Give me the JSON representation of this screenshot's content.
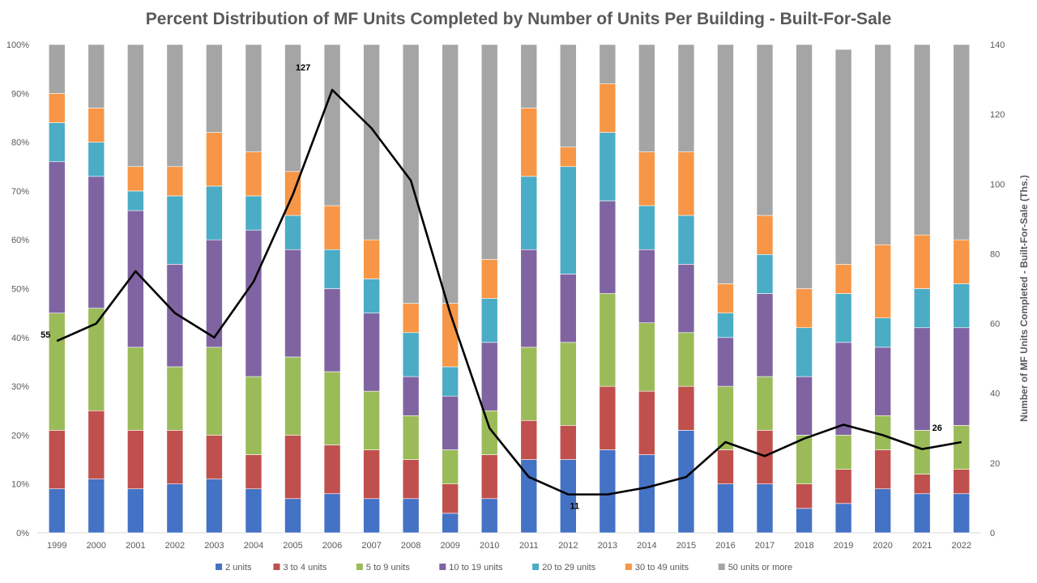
{
  "chart_data": {
    "type": "bar",
    "subtype": "stacked-percent-with-line",
    "title": "Percent Distribution of MF Units Completed by Number of Units Per Building - Built-For-Sale",
    "categories": [
      "1999",
      "2000",
      "2001",
      "2002",
      "2003",
      "2004",
      "2005",
      "2006",
      "2007",
      "2008",
      "2009",
      "2010",
      "2011",
      "2012",
      "2013",
      "2014",
      "2015",
      "2016",
      "2017",
      "2018",
      "2019",
      "2020",
      "2021",
      "2022"
    ],
    "y_left": {
      "ticks": [
        "0%",
        "10%",
        "20%",
        "30%",
        "40%",
        "50%",
        "60%",
        "70%",
        "80%",
        "90%",
        "100%"
      ],
      "ylim": [
        0,
        100
      ]
    },
    "y_right": {
      "label": "Number of MF Units Completed - Built-For-Sale (Ths.)",
      "ticks": [
        "0",
        "20",
        "40",
        "60",
        "80",
        "100",
        "120",
        "140"
      ],
      "ylim": [
        0,
        140
      ]
    },
    "series": [
      {
        "name": "2 units",
        "color": "#4472C4",
        "values": [
          9,
          11,
          9,
          10,
          11,
          9,
          7,
          8,
          7,
          7,
          4,
          7,
          15,
          15,
          17,
          16,
          21,
          10,
          10,
          5,
          6,
          9,
          8,
          8
        ]
      },
      {
        "name": "3 to 4 units",
        "color": "#C0504D",
        "values": [
          12,
          14,
          12,
          11,
          9,
          7,
          13,
          10,
          10,
          8,
          6,
          9,
          8,
          7,
          13,
          13,
          9,
          7,
          11,
          5,
          7,
          8,
          4,
          5
        ]
      },
      {
        "name": "5 to 9 units",
        "color": "#9BBB59",
        "values": [
          24,
          21,
          17,
          13,
          18,
          16,
          16,
          15,
          12,
          9,
          7,
          9,
          15,
          17,
          19,
          14,
          11,
          13,
          11,
          10,
          7,
          7,
          9,
          9
        ]
      },
      {
        "name": "10 to 19 units",
        "color": "#8064A2",
        "values": [
          31,
          27,
          28,
          21,
          22,
          30,
          22,
          17,
          16,
          8,
          11,
          14,
          20,
          14,
          19,
          15,
          14,
          10,
          17,
          12,
          19,
          14,
          21,
          20
        ]
      },
      {
        "name": "20 to 29 units",
        "color": "#4BACC6",
        "values": [
          8,
          7,
          4,
          14,
          11,
          7,
          7,
          8,
          7,
          9,
          6,
          9,
          15,
          22,
          14,
          9,
          10,
          5,
          8,
          10,
          10,
          6,
          8,
          9
        ]
      },
      {
        "name": "30 to 49 units",
        "color": "#F79646",
        "values": [
          6,
          7,
          5,
          6,
          11,
          9,
          9,
          9,
          8,
          6,
          13,
          8,
          14,
          4,
          10,
          11,
          13,
          6,
          8,
          8,
          6,
          15,
          11,
          9
        ]
      },
      {
        "name": "50 units or more",
        "color": "#A5A5A5",
        "values": [
          10,
          13,
          25,
          25,
          18,
          22,
          26,
          33,
          40,
          53,
          53,
          44,
          13,
          21,
          8,
          22,
          22,
          49,
          35,
          50,
          44,
          41,
          39,
          40
        ]
      }
    ],
    "line": {
      "name": "Number of MF Units Completed - Built-For-Sale (Ths.)",
      "color": "#000000",
      "axis": "right",
      "values": [
        55,
        60,
        75,
        63,
        56,
        72,
        97,
        127,
        116,
        101,
        63,
        30,
        16,
        11,
        11,
        13,
        16,
        26,
        22,
        27,
        31,
        28,
        24,
        26
      ],
      "data_labels": [
        {
          "index": 0,
          "text": "55"
        },
        {
          "index": 7,
          "text": "127"
        },
        {
          "index": 13,
          "text": "11"
        },
        {
          "index": 23,
          "text": "26"
        }
      ]
    },
    "legend": "bottom",
    "grid": false
  }
}
